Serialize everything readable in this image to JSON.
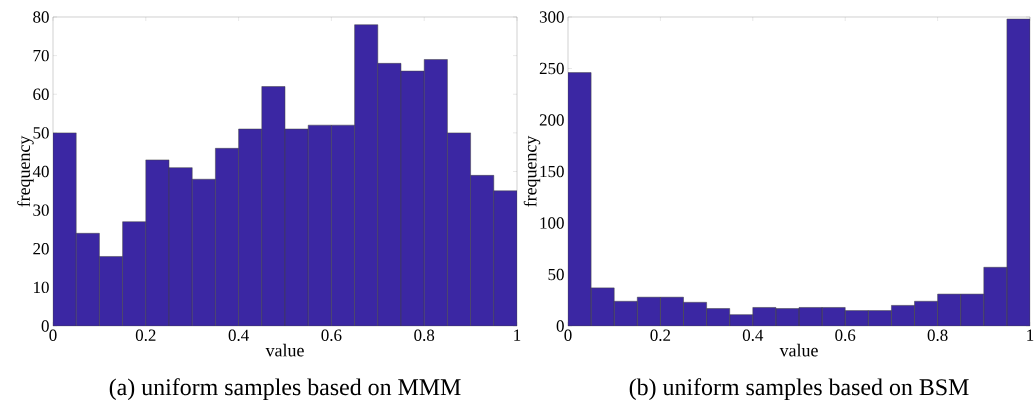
{
  "chart_data": [
    {
      "type": "histogram",
      "title": "(a) uniform samples based on MMM",
      "xlabel": "value",
      "ylabel": "frequency",
      "bins": [
        0,
        0.05,
        0.1,
        0.15,
        0.2,
        0.25,
        0.3,
        0.35,
        0.4,
        0.45,
        0.5,
        0.55,
        0.6,
        0.65,
        0.7,
        0.75,
        0.8,
        0.85,
        0.9,
        0.95,
        1
      ],
      "values": [
        50,
        24,
        18,
        27,
        43,
        41,
        38,
        46,
        51,
        62,
        51,
        52,
        52,
        78,
        68,
        66,
        69,
        50,
        39,
        35
      ],
      "color": "#3b27a3",
      "xlim": [
        0,
        1
      ],
      "xticks": [
        0,
        0.2,
        0.4,
        0.6,
        0.8,
        1
      ],
      "ylim": [
        0,
        80
      ],
      "yticks": [
        0,
        10,
        20,
        30,
        40,
        50,
        60,
        70,
        80
      ]
    },
    {
      "type": "histogram",
      "title": "(b) uniform samples based on BSM",
      "xlabel": "value",
      "ylabel": "frequency",
      "bins": [
        0,
        0.05,
        0.1,
        0.15,
        0.2,
        0.25,
        0.3,
        0.35,
        0.4,
        0.45,
        0.5,
        0.55,
        0.6,
        0.65,
        0.7,
        0.75,
        0.8,
        0.85,
        0.9,
        0.95,
        1
      ],
      "values": [
        246,
        37,
        24,
        28,
        28,
        23,
        17,
        11,
        18,
        17,
        18,
        18,
        15,
        15,
        20,
        24,
        31,
        31,
        57,
        298
      ],
      "color": "#3b27a3",
      "xlim": [
        0,
        1
      ],
      "xticks": [
        0,
        0.2,
        0.4,
        0.6,
        0.8,
        1
      ],
      "ylim": [
        0,
        300
      ],
      "yticks": [
        0,
        50,
        100,
        150,
        200,
        250,
        300
      ]
    }
  ]
}
